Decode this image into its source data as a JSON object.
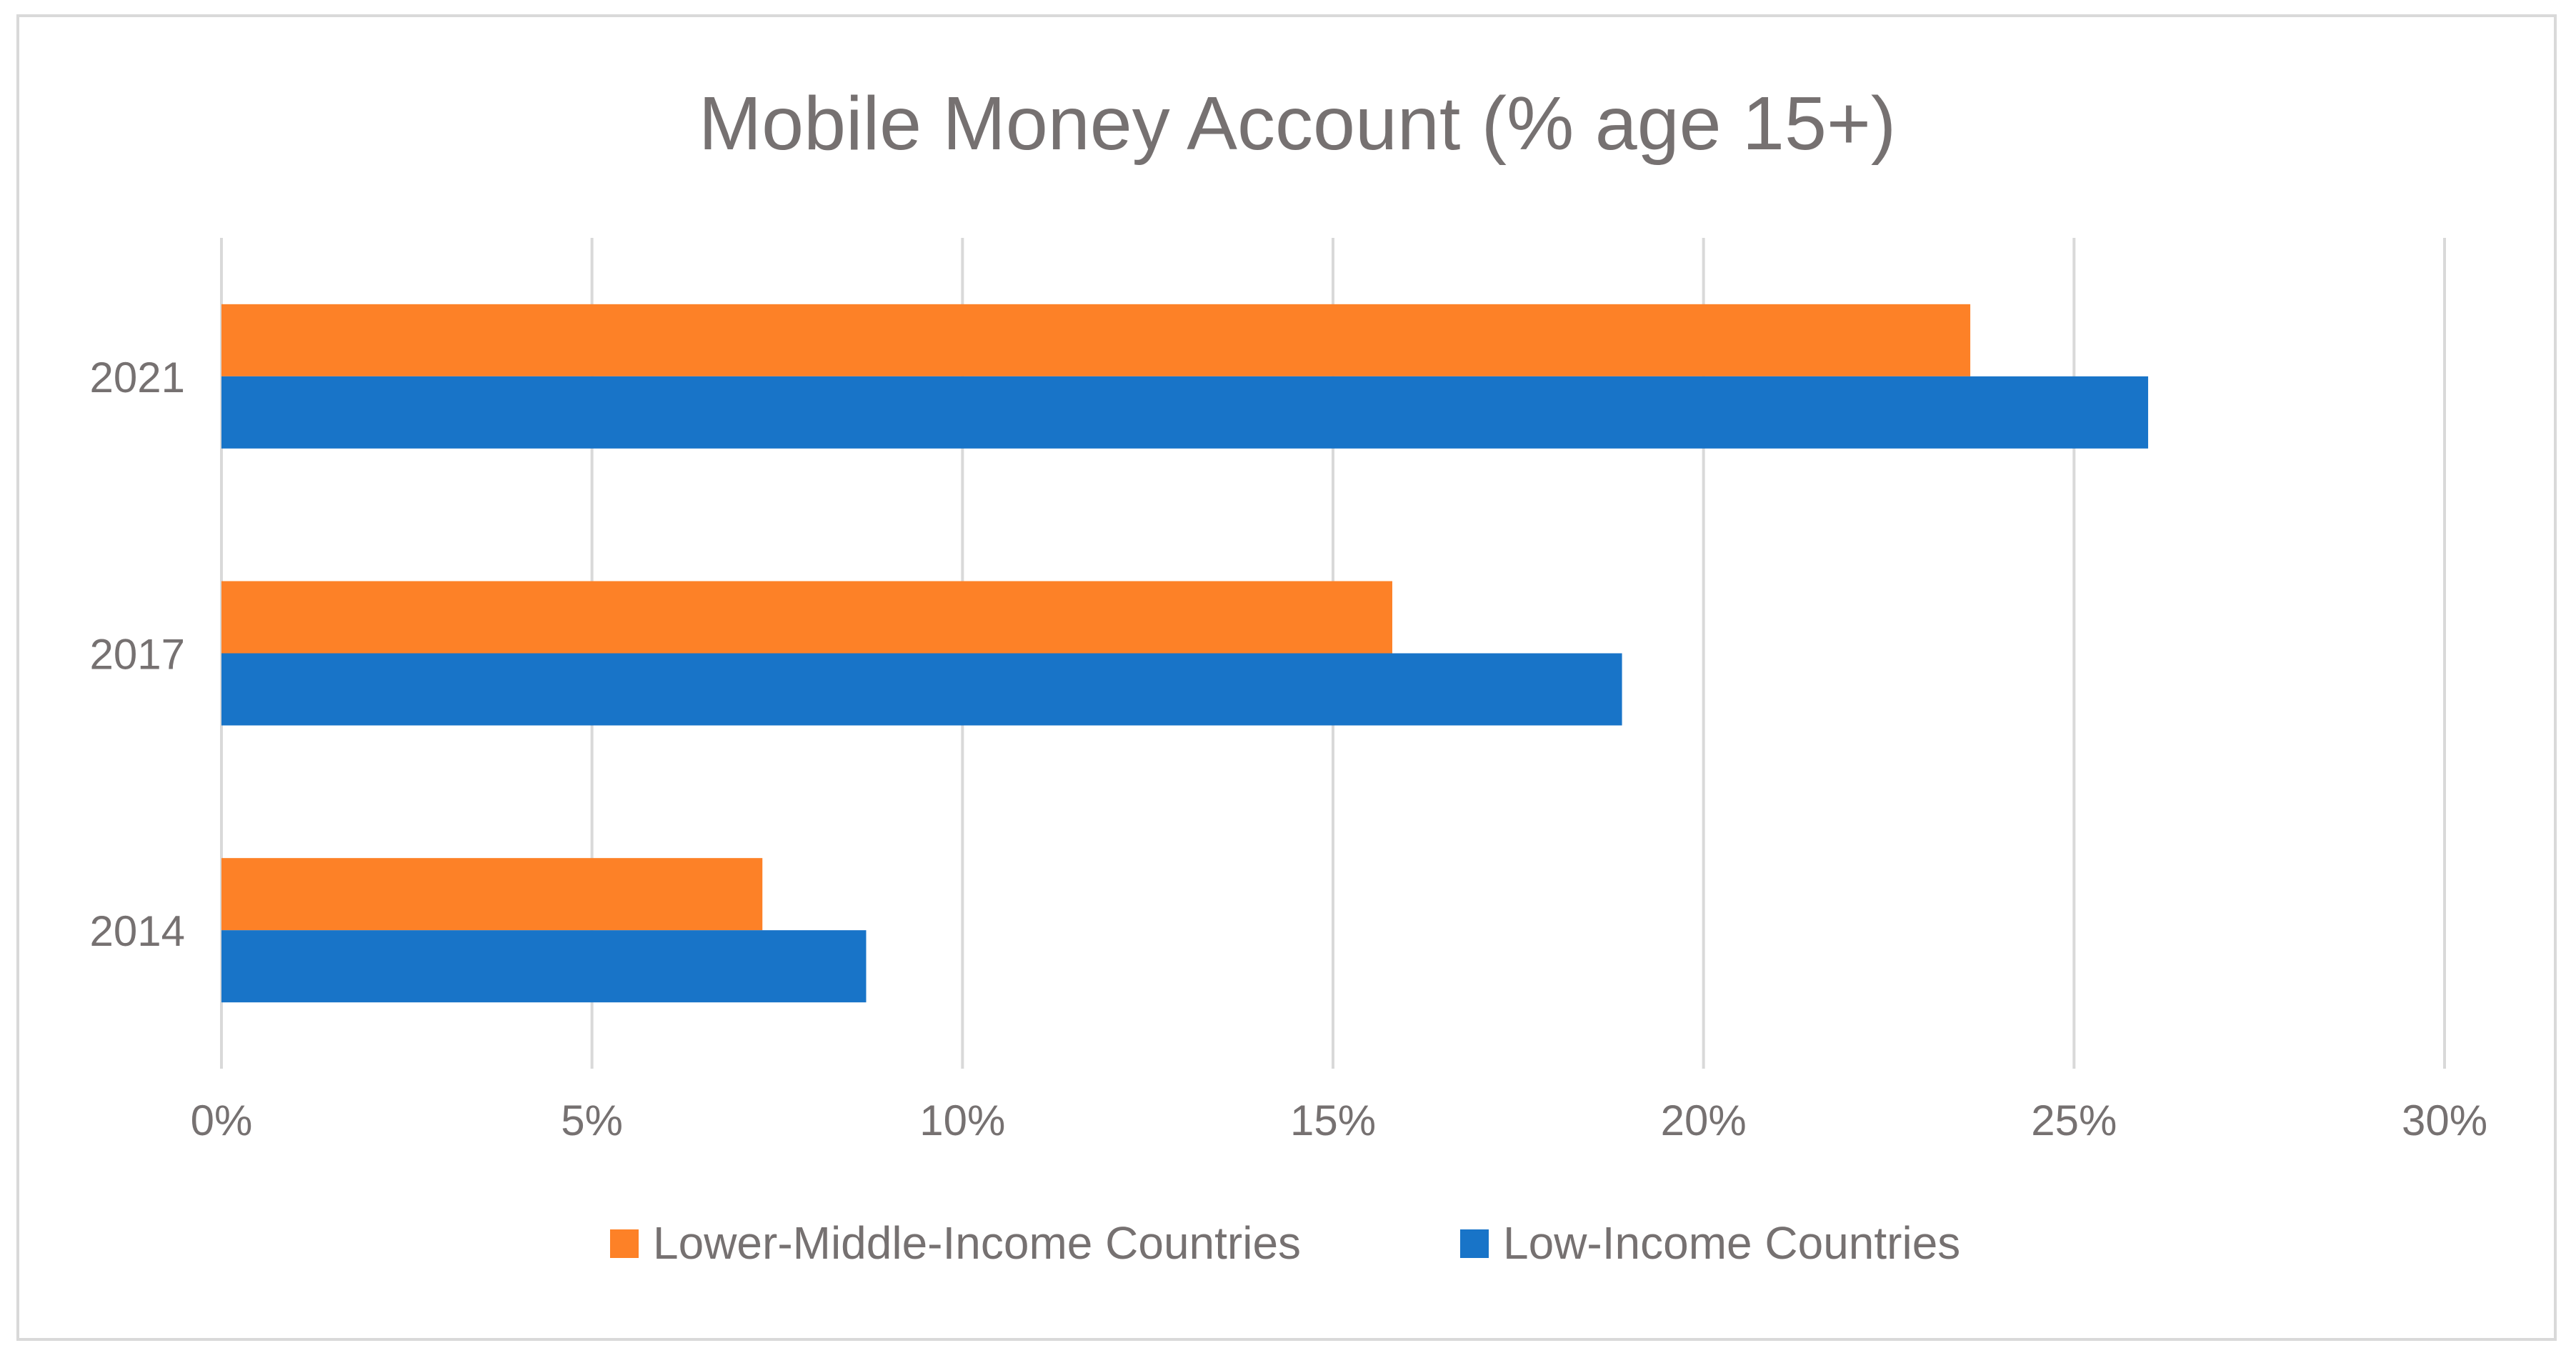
{
  "chart_data": {
    "type": "bar",
    "orientation": "horizontal",
    "title": "Mobile Money Account (% age 15+)",
    "categories": [
      "2021",
      "2017",
      "2014"
    ],
    "series": [
      {
        "name": "Lower-Middle-Income Countries",
        "color": "#FD8127",
        "values": [
          23.6,
          15.8,
          7.3
        ]
      },
      {
        "name": "Low-Income Countries",
        "color": "#1874C8",
        "values": [
          26.0,
          18.9,
          8.7
        ]
      }
    ],
    "xlim": [
      0,
      30
    ],
    "x_ticks": [
      0,
      5,
      10,
      15,
      20,
      25,
      30
    ],
    "x_tick_labels": [
      "0%",
      "5%",
      "10%",
      "15%",
      "20%",
      "25%",
      "30%"
    ],
    "grid": true,
    "legend_position": "bottom"
  }
}
